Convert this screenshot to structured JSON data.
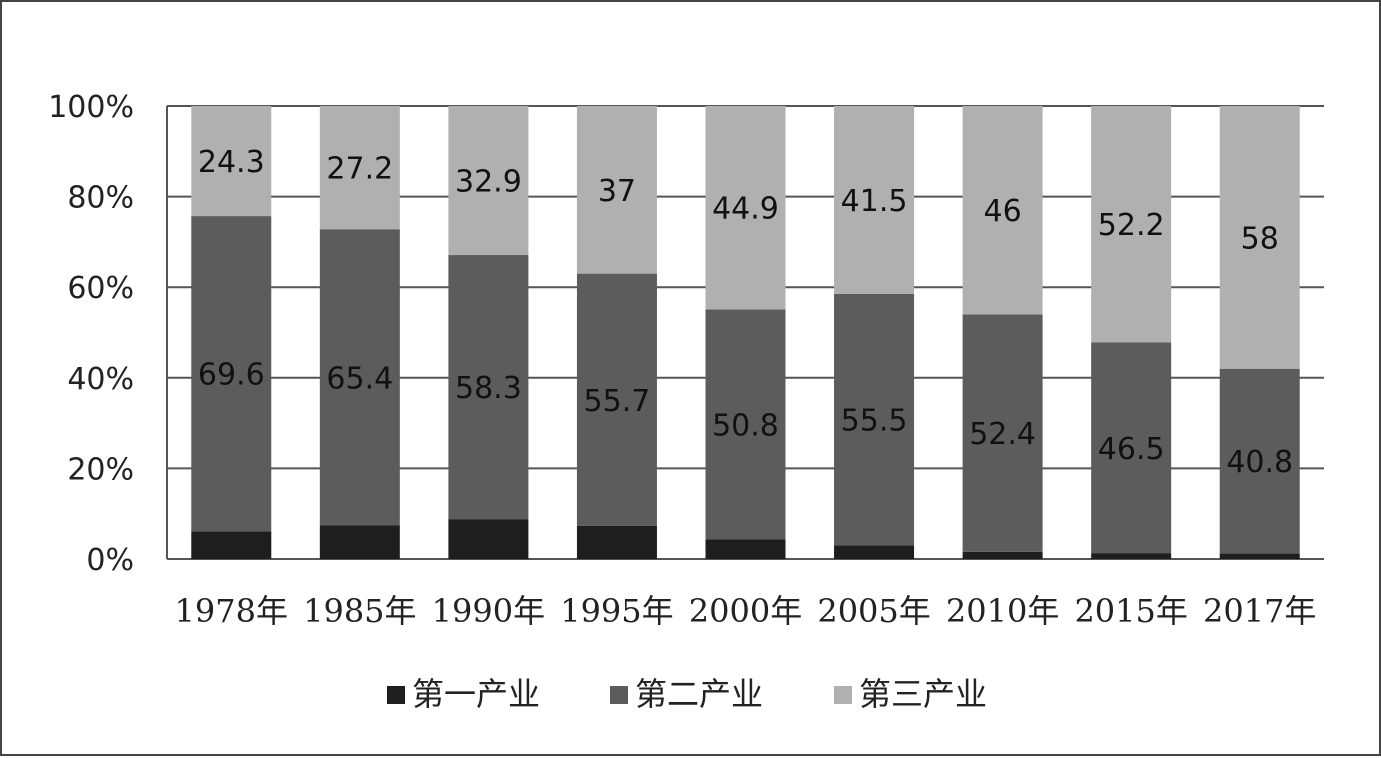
{
  "chart_data": {
    "type": "bar",
    "stacked": "percent",
    "categories": [
      "1978年",
      "1985年",
      "1990年",
      "1995年",
      "2000年",
      "2005年",
      "2010年",
      "2015年",
      "2017年"
    ],
    "series": [
      {
        "name": "第一产业",
        "values": [
          6.1,
          7.4,
          8.8,
          7.3,
          4.3,
          3.0,
          1.6,
          1.3,
          1.2
        ],
        "color": "#1e1e1e"
      },
      {
        "name": "第二产业",
        "values": [
          69.6,
          65.4,
          58.3,
          55.7,
          50.8,
          55.5,
          52.4,
          46.5,
          40.8
        ],
        "color": "#5c5c5c"
      },
      {
        "name": "第三产业",
        "values": [
          24.3,
          27.2,
          32.9,
          37,
          44.9,
          41.5,
          46,
          52.2,
          58
        ],
        "color": "#b0b0b0"
      }
    ],
    "data_labels": {
      "第二产业": [
        "69.6",
        "65.4",
        "58.3",
        "55.7",
        "50.8",
        "55.5",
        "52.4",
        "46.5",
        "40.8"
      ],
      "第三产业": [
        "24.3",
        "27.2",
        "32.9",
        "37",
        "44.9",
        "41.5",
        "46",
        "52.2",
        "58"
      ]
    },
    "y_ticks": [
      "0%",
      "20%",
      "40%",
      "60%",
      "80%",
      "100%"
    ],
    "ylim": [
      0,
      100
    ],
    "grid": true,
    "legend_position": "bottom"
  }
}
